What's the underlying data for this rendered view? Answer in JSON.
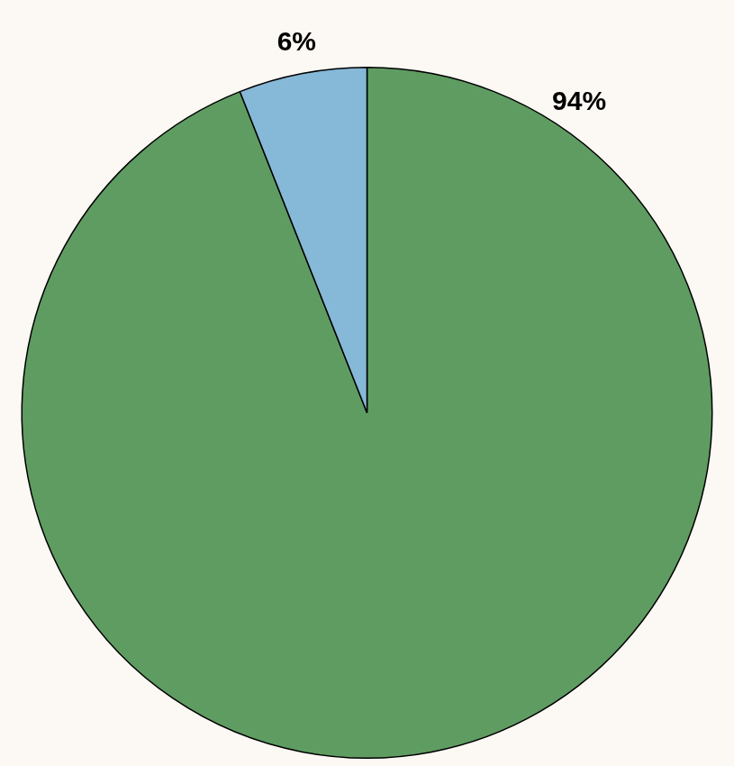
{
  "chart_data": {
    "type": "pie",
    "values": [
      94,
      6
    ],
    "value_labels": [
      "94%",
      "6%"
    ],
    "colors": [
      "#5f9c62",
      "#86b8d8"
    ],
    "data_labels": true
  }
}
